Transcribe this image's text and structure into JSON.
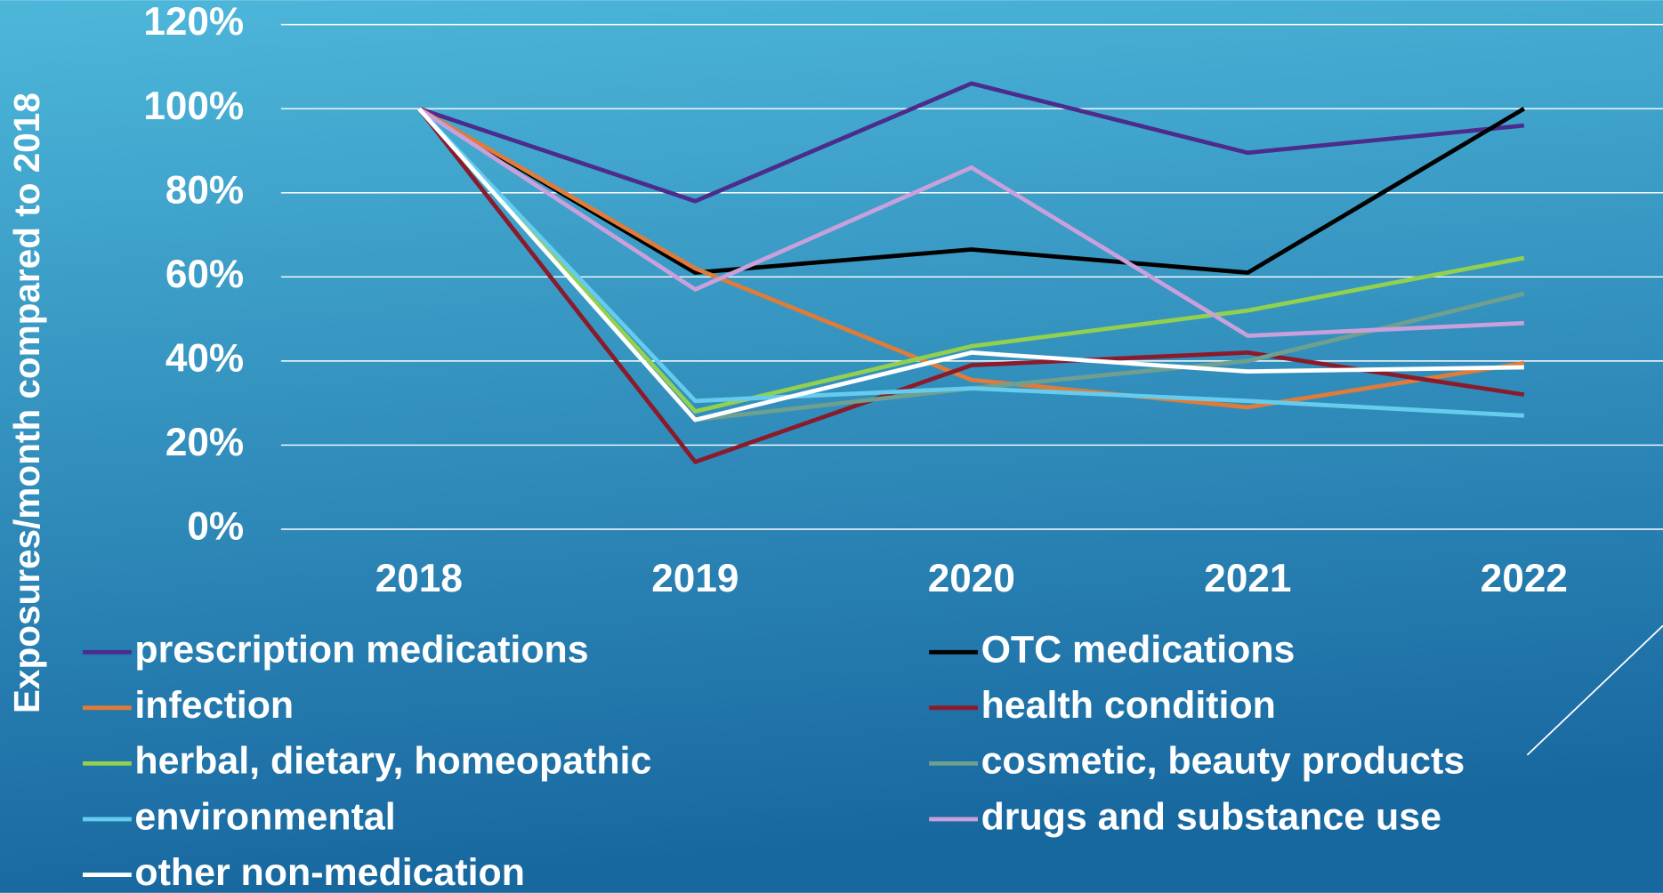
{
  "chart_data": {
    "type": "line",
    "y_label": "Exposures/month compared to 2018",
    "categories": [
      "2018",
      "2019",
      "2020",
      "2021",
      "2022"
    ],
    "ylim": [
      0,
      120
    ],
    "yticks": [
      {
        "value": 0,
        "label": "0%"
      },
      {
        "value": 20,
        "label": "20%"
      },
      {
        "value": 40,
        "label": "40%"
      },
      {
        "value": 60,
        "label": "60%"
      },
      {
        "value": 80,
        "label": "80%"
      },
      {
        "value": 100,
        "label": "100%"
      },
      {
        "value": 120,
        "label": "120%"
      }
    ],
    "grid": true,
    "legend": "bottom",
    "series": [
      {
        "name": "prescription medications",
        "color": "#4b2c8c",
        "values": [
          100,
          78,
          106,
          89.5,
          96
        ]
      },
      {
        "name": "OTC medications",
        "color": "#000000",
        "values": [
          100,
          61,
          66.5,
          61,
          100
        ]
      },
      {
        "name": "infection",
        "color": "#e07b39",
        "values": [
          100,
          62,
          35.5,
          29,
          39.5
        ]
      },
      {
        "name": "health condition",
        "color": "#8b1a2b",
        "values": [
          100,
          16,
          39,
          42,
          32
        ]
      },
      {
        "name": "herbal, dietary, homeopathic",
        "color": "#92d050",
        "values": [
          100,
          28,
          43.5,
          52,
          64.5
        ]
      },
      {
        "name": "cosmetic, beauty products",
        "color": "#6fa08f",
        "values": [
          100,
          26,
          33.5,
          40,
          56
        ]
      },
      {
        "name": "environmental",
        "color": "#66ccee",
        "values": [
          100,
          30.5,
          33.5,
          30.5,
          27
        ]
      },
      {
        "name": "drugs and substance use",
        "color": "#c9a0dc",
        "values": [
          100,
          57,
          86,
          46,
          49
        ]
      },
      {
        "name": "other non-medication",
        "color": "#ffffff",
        "values": [
          100,
          26,
          42,
          37.5,
          38.5
        ]
      }
    ]
  }
}
